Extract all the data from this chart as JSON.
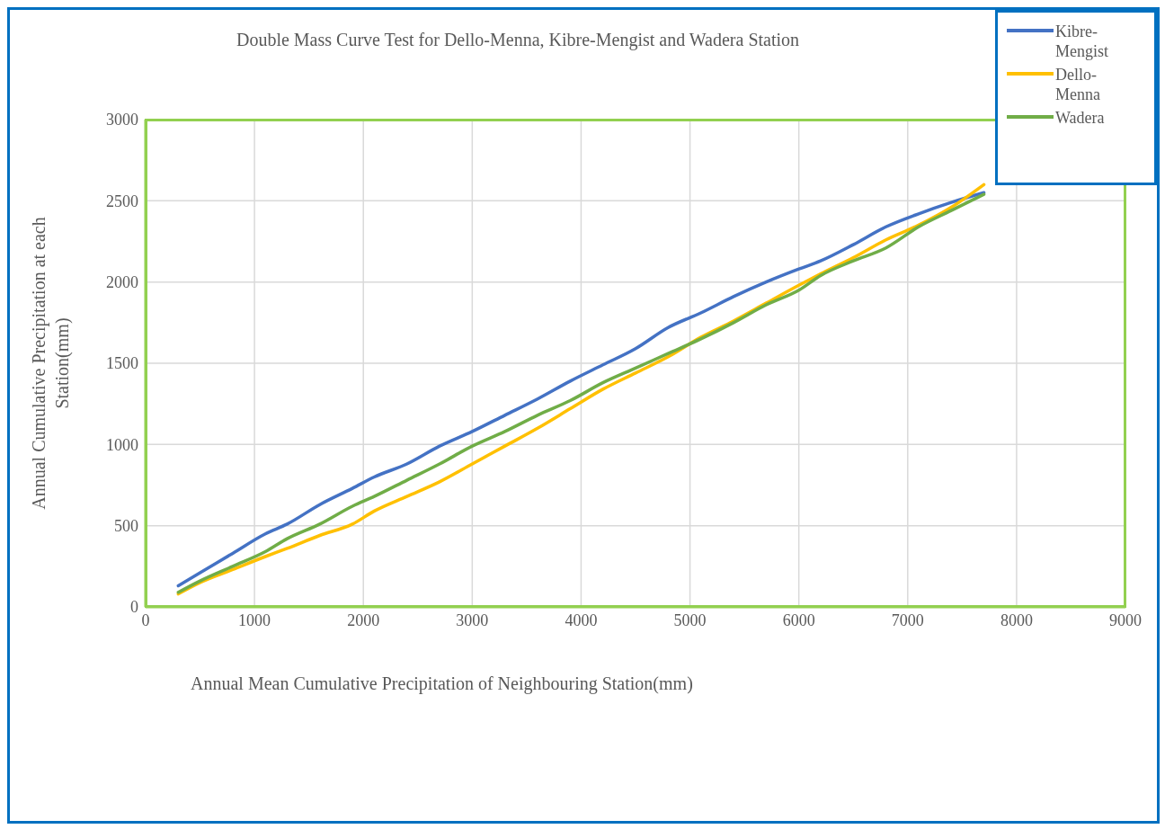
{
  "chart_data": {
    "type": "line",
    "title": "Double Mass Curve Test for Dello-Menna, Kibre-Mengist and Wadera Station",
    "xlabel": "Annual Mean Cumulative Precipitation of Neighbouring Station(mm)",
    "ylabel": "Annual Cumulative Precipitation at each Station(mm)",
    "x": [
      300,
      500,
      800,
      1100,
      1300,
      1600,
      1900,
      2100,
      2400,
      2700,
      3000,
      3300,
      3600,
      3900,
      4200,
      4500,
      4800,
      5100,
      5400,
      5700,
      6000,
      6200,
      6500,
      6800,
      7100,
      7400,
      7700
    ],
    "series": [
      {
        "name": "Kibre-Mengist",
        "color": "#4472c4",
        "values": [
          130,
          210,
          330,
          450,
          510,
          630,
          730,
          800,
          880,
          990,
          1080,
          1180,
          1280,
          1390,
          1490,
          1590,
          1720,
          1810,
          1910,
          2000,
          2080,
          2130,
          2230,
          2340,
          2420,
          2490,
          2550
        ]
      },
      {
        "name": "Dello-Menna",
        "color": "#ffc000",
        "values": [
          80,
          150,
          230,
          310,
          360,
          440,
          510,
          590,
          680,
          770,
          880,
          990,
          1100,
          1220,
          1340,
          1440,
          1540,
          1660,
          1760,
          1870,
          1980,
          2050,
          2150,
          2260,
          2350,
          2460,
          2600
        ]
      },
      {
        "name": "Wadera",
        "color": "#70ad47",
        "values": [
          90,
          160,
          250,
          340,
          420,
          510,
          620,
          680,
          780,
          880,
          990,
          1080,
          1180,
          1270,
          1380,
          1470,
          1560,
          1650,
          1750,
          1860,
          1950,
          2040,
          2130,
          2210,
          2340,
          2440,
          2540
        ]
      }
    ],
    "xlim": [
      0,
      9000
    ],
    "xticks": [
      0,
      1000,
      2000,
      3000,
      4000,
      5000,
      6000,
      7000,
      8000,
      9000
    ],
    "ylim": [
      0,
      3000
    ],
    "yticks": [
      0,
      500,
      1000,
      1500,
      2000,
      2500,
      3000
    ],
    "grid": true,
    "legend": "top right",
    "marker": "none",
    "line_style": "solid"
  }
}
